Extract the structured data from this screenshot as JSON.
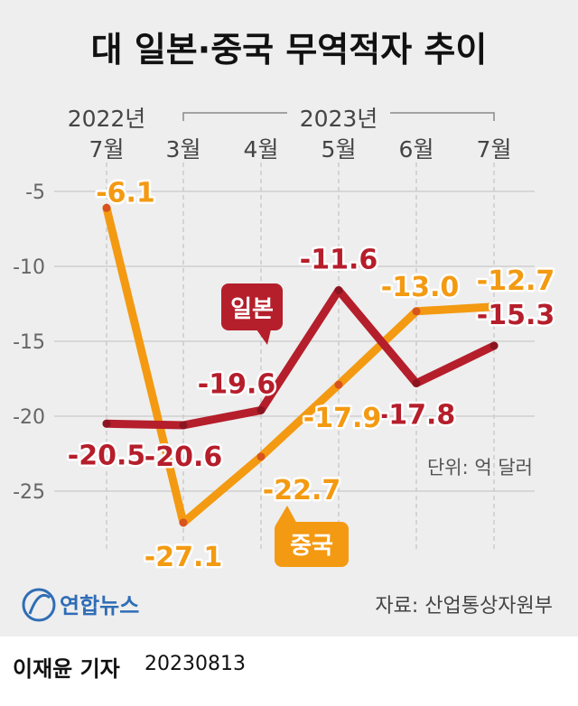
{
  "chart_data": {
    "type": "line",
    "title": "대 일본·중국 무역적자 추이",
    "categories": [
      "7월",
      "3월",
      "4월",
      "5월",
      "6월",
      "7월"
    ],
    "year_labels": [
      "2022년",
      "2023년"
    ],
    "ylim": [
      -27.5,
      -3.5
    ],
    "yticks": [
      -5,
      -10,
      -15,
      -20,
      -25
    ],
    "grid": true,
    "unit_note": "단위: 억 달러",
    "series": [
      {
        "name": "일본",
        "color": "#b51e2b",
        "values": [
          -20.5,
          -20.6,
          -19.6,
          -11.6,
          -17.8,
          -15.3
        ],
        "labels": [
          "-20.5",
          "-20.6",
          "-19.6",
          "-11.6",
          "-17.8",
          "-15.3"
        ]
      },
      {
        "name": "중국",
        "color": "#f39a12",
        "values": [
          -6.1,
          -27.1,
          -22.7,
          -17.9,
          -13.0,
          -12.7
        ],
        "labels": [
          "-6.1",
          "-27.1",
          "-22.7",
          "-17.9",
          "-13.0",
          "-12.7"
        ]
      }
    ]
  },
  "source": "자료: 산업통상자원부",
  "logo_text": "연합뉴스",
  "byline": "이재윤 기자",
  "date": "20230813"
}
